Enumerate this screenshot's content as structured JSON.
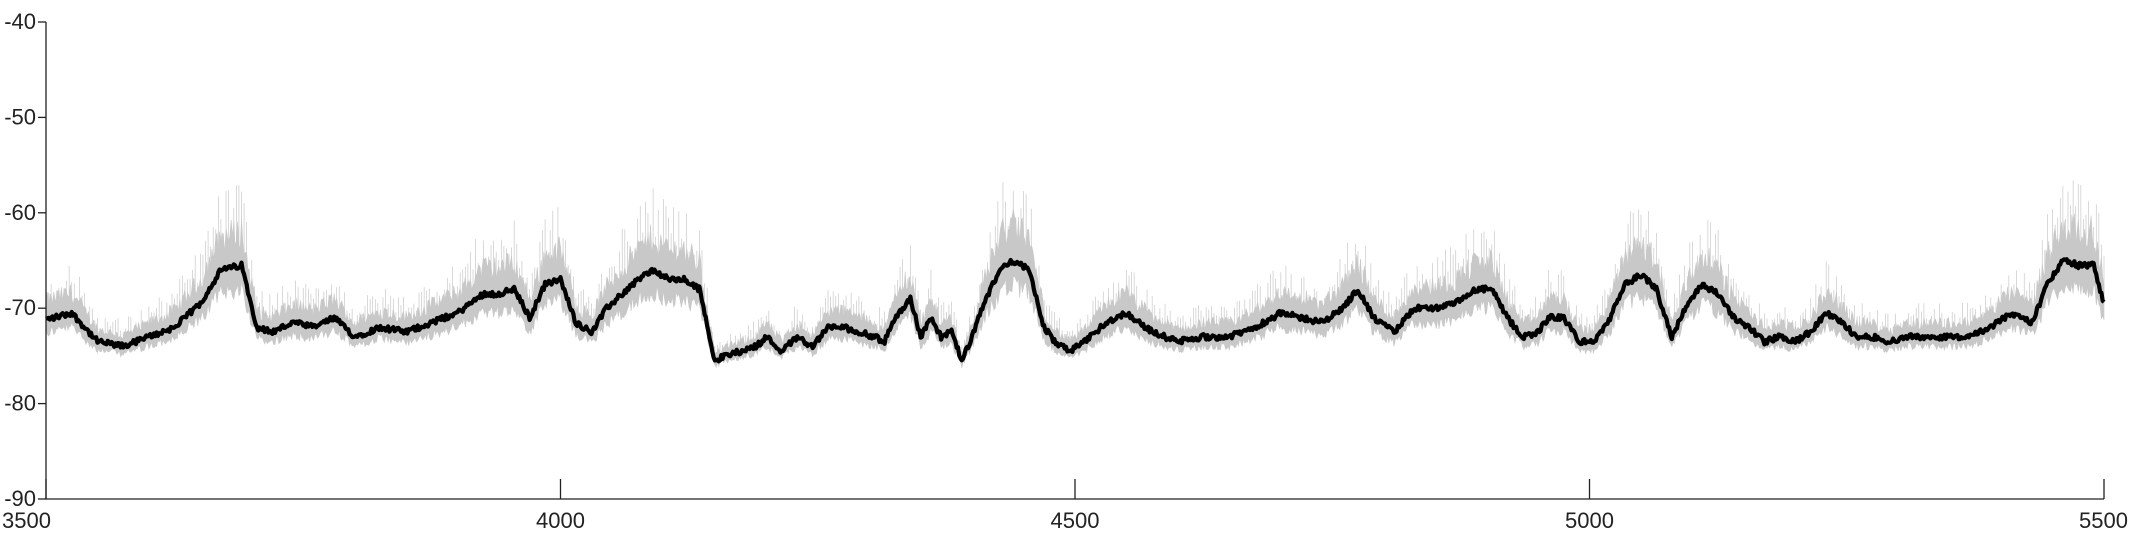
{
  "chart_data": {
    "type": "line",
    "title": "",
    "xlabel": "",
    "ylabel": "",
    "xlim": [
      3500,
      5500
    ],
    "ylim": [
      -90,
      -40
    ],
    "xticks": [
      3500,
      4000,
      4500,
      5000,
      5500
    ],
    "xtick_labels": [
      "3500",
      "4000",
      "4500",
      "5000",
      "5500"
    ],
    "yticks": [
      -90,
      -80,
      -70,
      -60,
      -50,
      -40
    ],
    "ytick_labels": [
      "-90",
      "-80",
      "-70",
      "-60",
      "-50",
      "-40"
    ],
    "grid": false,
    "colors": {
      "mean": "#000000",
      "band": "#c8c8c8",
      "axis": "#222222"
    },
    "x": [
      3500,
      3525,
      3550,
      3575,
      3600,
      3625,
      3650,
      3670,
      3690,
      3705,
      3720,
      3740,
      3760,
      3780,
      3800,
      3825,
      3850,
      3875,
      3900,
      3925,
      3940,
      3955,
      3970,
      3985,
      4000,
      4015,
      4030,
      4045,
      4060,
      4075,
      4090,
      4105,
      4120,
      4135,
      4150,
      4160,
      4175,
      4190,
      4200,
      4215,
      4230,
      4245,
      4260,
      4275,
      4290,
      4305,
      4315,
      4325,
      4340,
      4350,
      4360,
      4370,
      4380,
      4390,
      4400,
      4410,
      4420,
      4430,
      4440,
      4455,
      4470,
      4480,
      4495,
      4510,
      4530,
      4550,
      4575,
      4600,
      4625,
      4650,
      4675,
      4700,
      4720,
      4740,
      4760,
      4775,
      4790,
      4810,
      4830,
      4850,
      4870,
      4890,
      4905,
      4920,
      4935,
      4950,
      4960,
      4975,
      4990,
      5005,
      5020,
      5035,
      5050,
      5065,
      5080,
      5095,
      5110,
      5125,
      5140,
      5155,
      5170,
      5185,
      5200,
      5215,
      5230,
      5245,
      5260,
      5275,
      5290,
      5310,
      5330,
      5350,
      5370,
      5390,
      5410,
      5430,
      5445,
      5460,
      5475,
      5490,
      5500
    ],
    "series": [
      {
        "values": [
          -71.2,
          -70.5,
          -73.5,
          -74.0,
          -73.0,
          -72.0,
          -69.5,
          -66.0,
          -65.5,
          -72.0,
          -72.5,
          -71.5,
          -72.0,
          -71.0,
          -73.0,
          -72.0,
          -72.5,
          -71.5,
          -70.5,
          -68.5,
          -68.5,
          -68.0,
          -71.0,
          -67.5,
          -67.0,
          -71.5,
          -72.5,
          -70.0,
          -68.5,
          -67.0,
          -66.0,
          -67.0,
          -67.0,
          -68.0,
          -75.5,
          -75.0,
          -74.5,
          -74.0,
          -73.0,
          -74.5,
          -73.0,
          -74.0,
          -72.0,
          -72.0,
          -72.5,
          -73.0,
          -73.5,
          -71.0,
          -69.0,
          -73.0,
          -71.0,
          -73.0,
          -72.5,
          -75.5,
          -73.0,
          -70.0,
          -67.5,
          -65.5,
          -65.0,
          -66.0,
          -72.0,
          -73.5,
          -74.5,
          -73.5,
          -71.5,
          -70.5,
          -72.5,
          -73.5,
          -73.0,
          -73.0,
          -72.0,
          -70.5,
          -71.0,
          -71.5,
          -70.0,
          -68.0,
          -71.0,
          -72.5,
          -70.0,
          -70.0,
          -69.5,
          -68.0,
          -68.0,
          -71.0,
          -73.0,
          -72.5,
          -71.0,
          -71.0,
          -73.5,
          -73.5,
          -71.0,
          -67.5,
          -66.5,
          -68.0,
          -73.0,
          -69.5,
          -67.5,
          -68.5,
          -71.0,
          -72.0,
          -73.5,
          -73.0,
          -73.5,
          -72.5,
          -70.5,
          -71.5,
          -73.0,
          -73.0,
          -73.5,
          -73.0,
          -73.0,
          -73.0,
          -73.0,
          -72.0,
          -70.5,
          -71.5,
          -67.5,
          -65.0,
          -65.5,
          -65.5,
          -69.5
        ]
      }
    ]
  }
}
